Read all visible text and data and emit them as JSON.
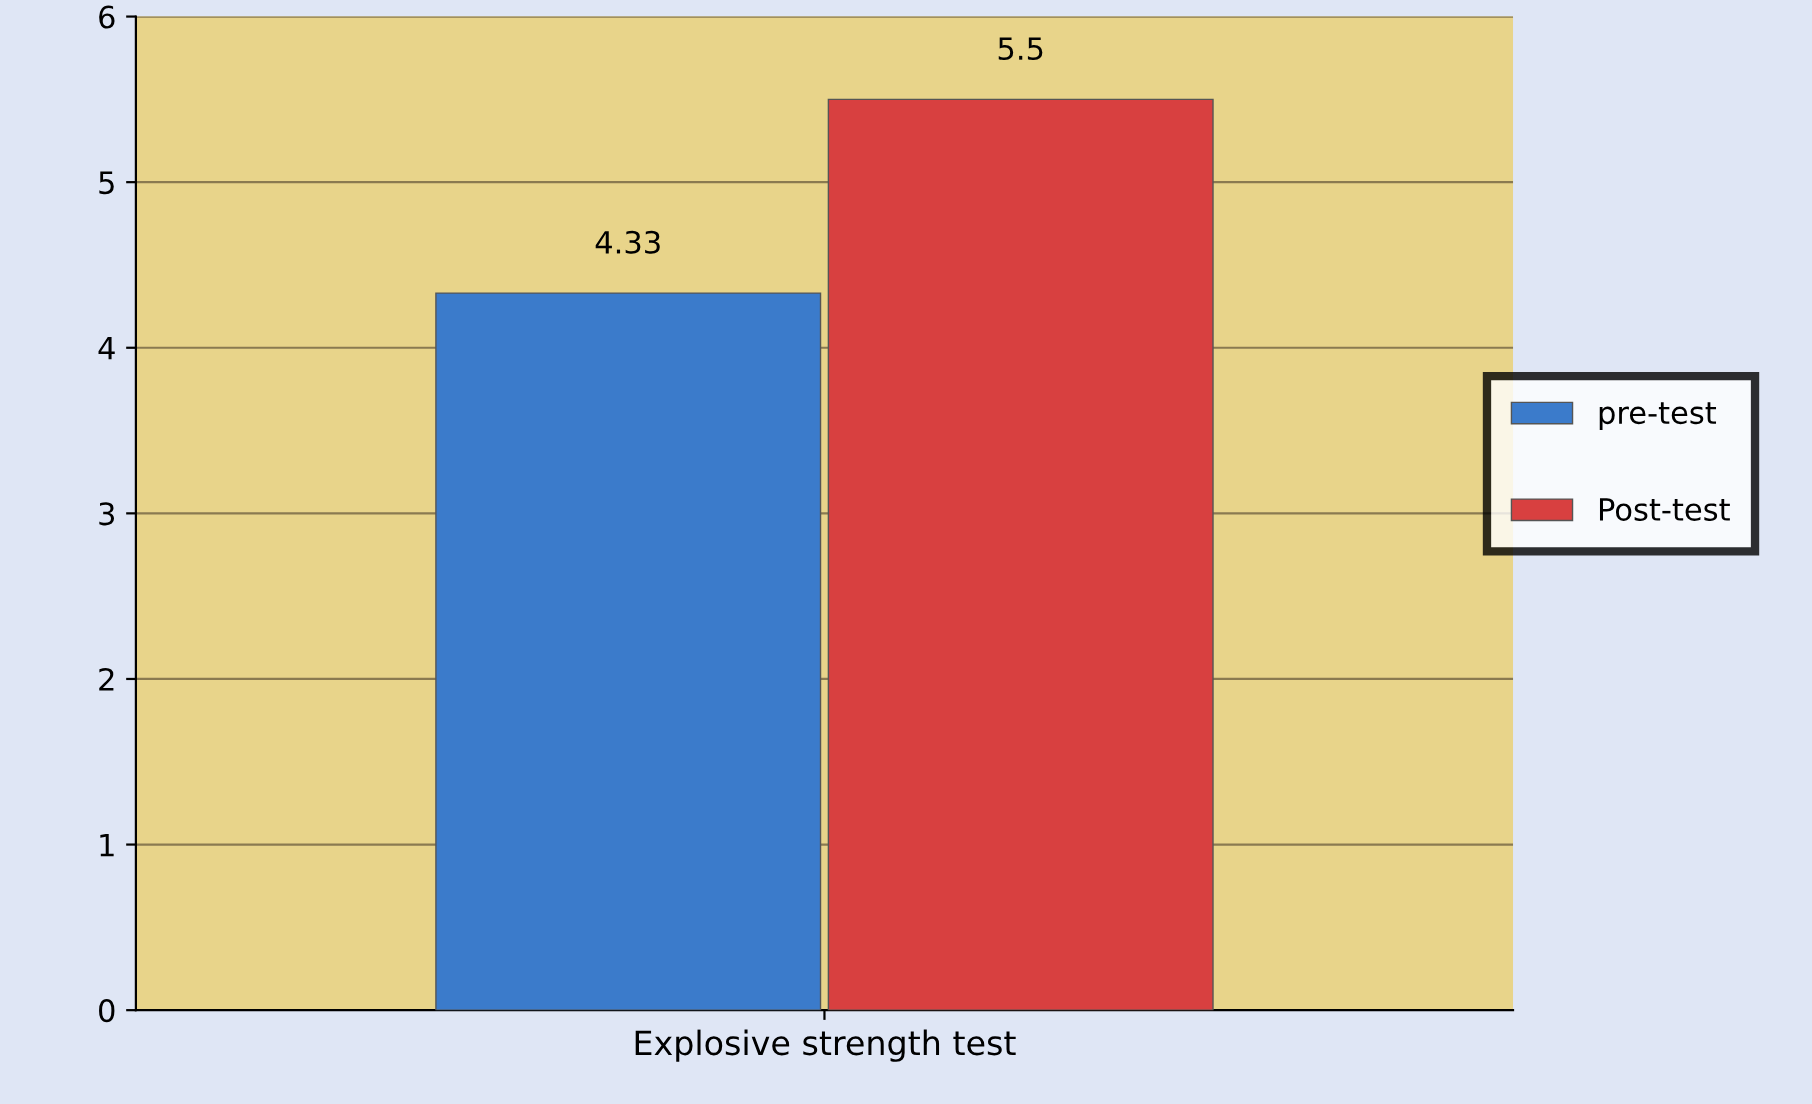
{
  "chart_data": {
    "type": "bar",
    "categories": [
      "Explosive strength test"
    ],
    "series": [
      {
        "name": "pre-test",
        "color": "#3b7bcb",
        "values": [
          4.33
        ]
      },
      {
        "name": "Post-test",
        "color": "#d84040",
        "values": [
          5.5
        ]
      }
    ],
    "ylim": [
      0,
      6
    ],
    "yticks": [
      0,
      1,
      2,
      3,
      4,
      5,
      6
    ],
    "grid": "y",
    "legend": "right",
    "data_labels": true
  }
}
